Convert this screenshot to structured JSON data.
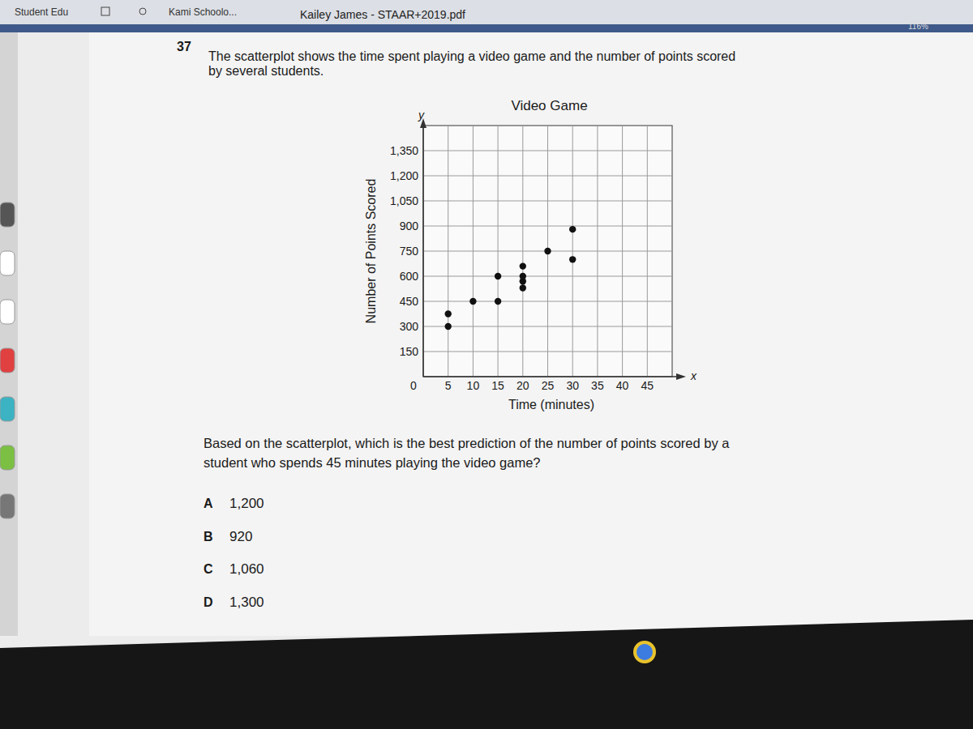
{
  "browser": {
    "left_text": "Student Edu",
    "tab": "Kami Schoolo...",
    "file": "Kailey James - STAAR+2019.pdf",
    "zoom": "116%"
  },
  "question": {
    "number": "37",
    "lines": [
      "The scatterplot shows the time spent playing a video game and the number of points scored",
      "by several students."
    ]
  },
  "prompt": [
    "Based on the scatterplot, which is the best prediction of the number of points scored by a",
    "student who spends 45 minutes playing the video game?"
  ],
  "choices": [
    {
      "letter": "A",
      "text": "1,200"
    },
    {
      "letter": "B",
      "text": "920"
    },
    {
      "letter": "C",
      "text": "1,060"
    },
    {
      "letter": "D",
      "text": "1,300"
    }
  ],
  "chart_data": {
    "type": "scatter",
    "title": "Video Game",
    "x_label": "Time (minutes)",
    "y_label": "Number of Points Scored",
    "x_symbol": "x",
    "y_symbol": "y",
    "x": [
      5,
      5,
      10,
      15,
      15,
      20,
      20,
      20,
      20,
      25,
      30,
      30
    ],
    "values": [
      375,
      300,
      450,
      600,
      450,
      660,
      600,
      570,
      530,
      750,
      880,
      700
    ],
    "color": "#111111",
    "marker": "circle",
    "xlim": [
      0,
      50
    ],
    "ylim": [
      0,
      1500
    ],
    "xticks": [
      0,
      5,
      10,
      15,
      20,
      25,
      30,
      35,
      40,
      45
    ],
    "yticks": [
      150,
      300,
      450,
      600,
      750,
      900,
      {
        "value": 1050,
        "label": "1,050"
      },
      {
        "value": 1200,
        "label": "1,200"
      },
      {
        "value": 1350,
        "label": "1,350"
      }
    ],
    "grid": true
  }
}
